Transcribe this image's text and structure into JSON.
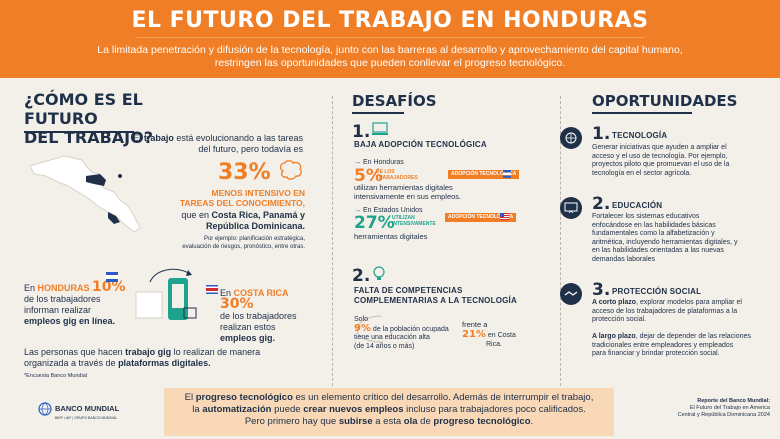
{
  "header": {
    "title": "EL FUTURO DEL TRABAJO EN HONDURAS",
    "subtitle_line1": "La limitada penetración y difusión de la tecnología, junto con las barreras al desarrollo y aprovechamiento del capital humano,",
    "subtitle_line2": "restringen las oportunidades que pueden conllevar el progreso tecnológico."
  },
  "left": {
    "title_line1": "¿CÓMO ES EL FUTURO",
    "title_line2": "DEL TRABAJO?",
    "intro_prefix": "El ",
    "intro_bold": "trabajo",
    "intro_line1_rest": " está evolucionando a las tareas",
    "intro_line2": "del futuro, pero todavía es",
    "stat_pct": "33%",
    "stat_line1": "MENOS INTENSIVO EN",
    "stat_line2": "TAREAS DEL CONOCIMIENTO,",
    "countries_prefix": "que en ",
    "countries_bold1": "Costa Rica, Panamá y",
    "countries_bold2": "República Dominicana.",
    "example_line1": "Por ejemplo: planificación estratégica,",
    "example_line2": "evaluación de riesgos, pronóstico, entre otras.",
    "hn_prefix": "En ",
    "hn_country": "HONDURAS",
    "hn_pct": "10%",
    "hn_line2": "de los trabajadores",
    "hn_line3": "informan realizar",
    "hn_line4": "empleos gig en línea.",
    "cr_prefix": "En ",
    "cr_country": "COSTA RICA",
    "cr_pct": "30%",
    "cr_line2": "de los trabajadores",
    "cr_line3": "realizan estos",
    "cr_line4": "empleos gig.",
    "gig_line1_a": "Las personas que hacen ",
    "gig_line1_b": "trabajo gig",
    "gig_line1_c": " lo realizan de manera",
    "gig_line2_a": "organizada a través de ",
    "gig_line2_b": "plataformas digitales.",
    "source": "*Encuesta Banco Mundial"
  },
  "middle": {
    "title": "DESAFÍOS",
    "c1_num": "1.",
    "c1_title": "BAJA ADOPCIÓN TECNOLÓGICA",
    "c1_hn_label": "En Honduras",
    "c1_hn_pct": "5%",
    "c1_hn_small1": "DE LOS",
    "c1_hn_small2": "TRABAJADORES",
    "c1_tag": "ADOPCIÓN TECNOLÓGICA",
    "c1_hn_text1": "utilizan herramientas digitales",
    "c1_hn_text2": "intensivamente en sus  empleos.",
    "c1_us_label": "En Estados Unidos",
    "c1_us_pct": "27%",
    "c1_us_small1": "UTILIZAN",
    "c1_us_small2": "INTENSIVAMENTE",
    "c1_tag2": "ADOPCIÓN TECNOLÓGICA",
    "c1_us_text": "herramientas digitales",
    "c2_num": "2.",
    "c2_title1": "FALTA DE COMPETENCIAS",
    "c2_title2": "COMPLEMENTARIAS A LA TECNOLOGÍA",
    "c2_solo": "Solo",
    "c2_pct": "9%",
    "c2_line1": " de la población ocupada",
    "c2_line2": "tiene una educación alta",
    "c2_line3": "(de 14 años o más)",
    "c2_vs": "frente a",
    "c2_cr_pct": "21%",
    "c2_cr_text1": " en Costa",
    "c2_cr_text2": "Rica."
  },
  "right": {
    "title": "OPORTUNIDADES",
    "o1_num": "1.",
    "o1_title": "TECNOLOGÍA",
    "o1_text": [
      "Generar iniciativas que ayuden a ampliar el",
      "acceso y el uso de tecnología. Por ejemplo,",
      "proyectos piloto que promuevan el uso de la",
      "tecnología en el sector agrícola."
    ],
    "o2_num": "2.",
    "o2_title": "EDUCACIÓN",
    "o2_text": [
      "Fortalecer los sistemas educativos",
      "enfocándose en las habilidades básicas",
      "fundamentales como la alfabetización y",
      "aritmética, incluyendo herramientas digitales, y",
      "en las habilidades orientadas a las nuevas",
      "demandas laborales"
    ],
    "o3_num": "3.",
    "o3_title": "PROTECCIÓN SOCIAL",
    "o3_short_bold": "A corto plazo",
    "o3_short_text": [
      ", explorar modelos para ampliar el",
      "acceso de los trabajadores de plataformas a la",
      "protección social."
    ],
    "o3_long_bold": "A largo plazo",
    "o3_long_text": [
      ", dejar de depender de las relaciones",
      "tradicionales entre empleadores y empleados",
      "para financiar y brindar protección social."
    ]
  },
  "footer": {
    "l1_a": "El ",
    "l1_b": "progreso tecnológico",
    "l1_c": " es un elemento crítico del desarrollo.  Además de interrumpir el trabajo,",
    "l2_a": "la ",
    "l2_b": "automatización",
    "l2_c": " puede ",
    "l2_d": "crear nuevos empleos",
    "l2_e": " incluso para trabajadores poco calificados.",
    "l3_a": "Pero primero hay que ",
    "l3_b": "subirse",
    "l3_c": " a esta ",
    "l3_d": "ola",
    "l3_e": " de ",
    "l3_f": "progreso tecnológico",
    "l3_g": ".",
    "logo": "BANCO MUNDIAL",
    "logo_sub": "BIRF • AIF | GRUPO BANCO MUNDIAL",
    "report_title": "Reporte del Banco Mundial:",
    "report_line1": "El Futuro del Trabajo en America",
    "report_line2": "Central y República Dominicana 2024"
  },
  "colors": {
    "orange": "#f07e26",
    "navy": "#1f3048",
    "teal": "#1fa38c",
    "background": "#f3efe9",
    "footer_box": "#f8d8b6"
  }
}
